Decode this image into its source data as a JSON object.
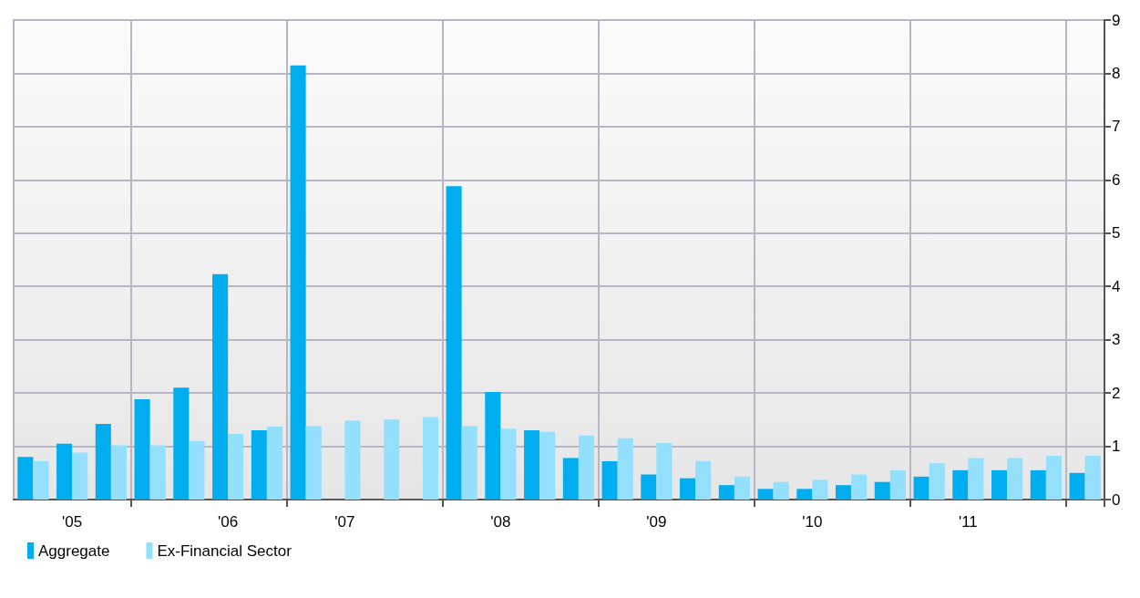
{
  "chart_data": {
    "type": "bar",
    "categories": [
      null,
      "'05",
      null,
      null,
      null,
      "'06",
      null,
      null,
      "'07",
      null,
      null,
      null,
      "'08",
      null,
      null,
      null,
      "'09",
      null,
      null,
      null,
      "'10",
      null,
      null,
      null,
      "'11",
      null,
      null,
      null
    ],
    "series": [
      {
        "name": "Aggregate",
        "color": "#00aeef",
        "values": [
          0.8,
          1.05,
          1.42,
          1.88,
          2.1,
          4.23,
          1.3,
          8.15,
          null,
          null,
          null,
          5.88,
          2.02,
          1.3,
          0.78,
          0.72,
          0.47,
          0.4,
          0.27,
          0.2,
          0.2,
          0.27,
          0.33,
          0.43,
          0.55,
          0.55,
          0.55,
          0.5
        ]
      },
      {
        "name": "Ex-Financial Sector",
        "color": "#94e0fc",
        "values": [
          0.72,
          0.88,
          1.02,
          1.02,
          1.1,
          1.23,
          1.37,
          1.38,
          1.48,
          1.5,
          1.55,
          1.38,
          1.33,
          1.27,
          1.2,
          1.15,
          1.06,
          0.72,
          0.43,
          0.33,
          0.37,
          0.47,
          0.55,
          0.68,
          0.78,
          0.78,
          0.82,
          0.82
        ]
      }
    ],
    "ylim": [
      0,
      9
    ],
    "yticks": [
      0,
      1,
      2,
      3,
      4,
      5,
      6,
      7,
      8,
      9
    ],
    "grid": true,
    "legend": "bottom left"
  }
}
